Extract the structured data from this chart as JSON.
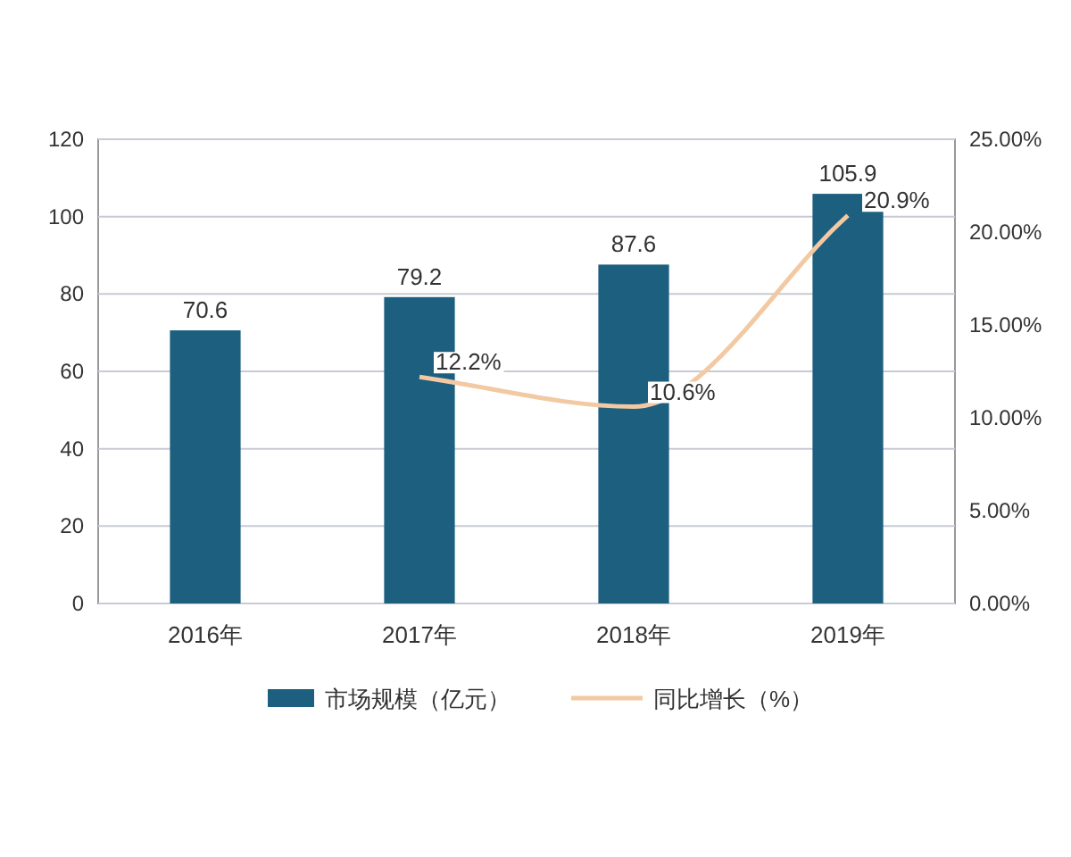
{
  "chart_data": {
    "type": "bar",
    "categories": [
      "2016年",
      "2017年",
      "2018年",
      "2019年"
    ],
    "series": [
      {
        "name": "市场规模（亿元）",
        "color": "#1c5f7e",
        "values": [
          70.6,
          79.2,
          87.6,
          105.9
        ],
        "value_labels": [
          "70.6",
          "79.2",
          "87.6",
          "105.9"
        ]
      },
      {
        "name": "同比增长（%）",
        "type": "line",
        "axis": "y2",
        "color": "#f2c9a2",
        "values": [
          null,
          12.2,
          10.6,
          20.9
        ],
        "value_labels": [
          null,
          "12.2%",
          "10.6%",
          "20.9%"
        ]
      }
    ],
    "ylim": [
      0,
      120
    ],
    "yticks": [
      0,
      20,
      40,
      60,
      80,
      100,
      120
    ],
    "y2lim": [
      0,
      25
    ],
    "y2ticks": [
      {
        "value": 0,
        "label": "0.00%"
      },
      {
        "value": 5,
        "label": "5.00%"
      },
      {
        "value": 10,
        "label": "10.00%"
      },
      {
        "value": 15,
        "label": "15.00%"
      },
      {
        "value": 20,
        "label": "20.00%"
      },
      {
        "value": 25,
        "label": "25.00%"
      }
    ],
    "grid": "y",
    "legend": "bottom"
  }
}
